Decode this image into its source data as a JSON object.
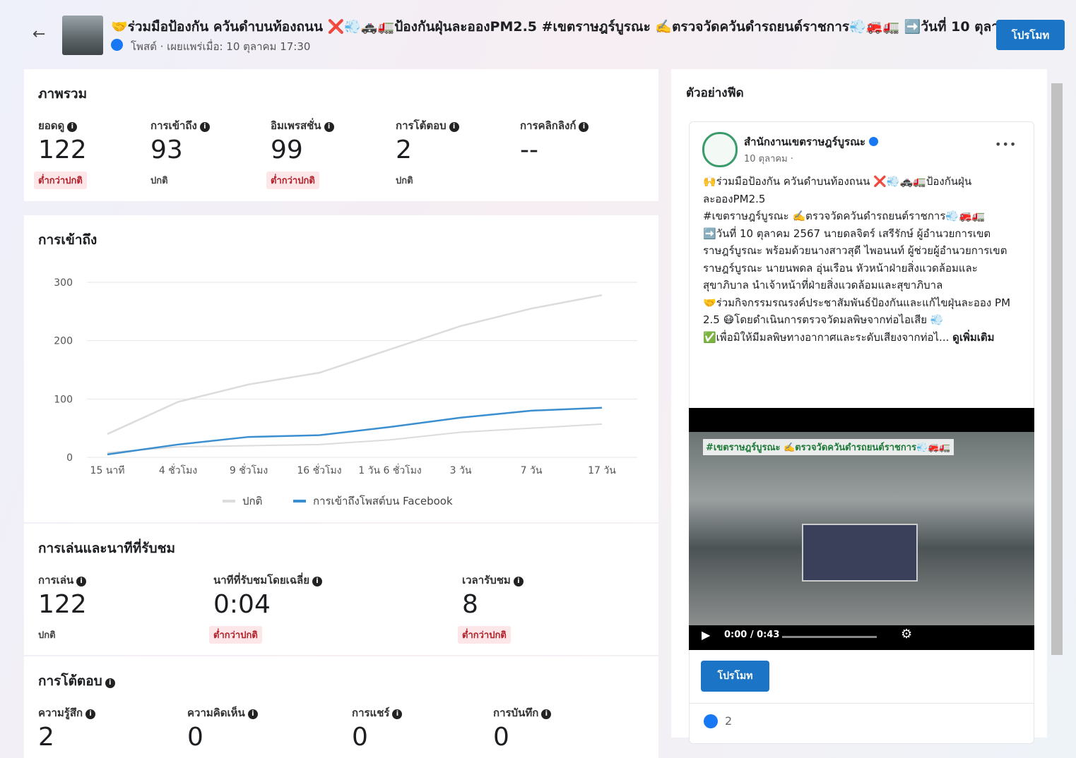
{
  "header": {
    "title": "🤝ร่วมมือป้องกัน ควันดำบนท้องถนน ❌💨🚓🚛ป้องกันฝุ่นละอองPM2.5 #เขตราษฎร์บูรณะ ✍️ตรวจวัดควันดำรถยนต์ราชการ💨🚒🚛 ➡️วันที่ 10 ตุลา...",
    "subtitle": "โพสต์ · เผยแพร่เมื่อ: 10 ตุลาคม 17:30",
    "button": "โปรโมท"
  },
  "overview": {
    "title": "ภาพรวม",
    "metrics": [
      {
        "label": "ยอดดู",
        "value": 122,
        "status": "ต่ำกว่าปกติ",
        "highlight": true
      },
      {
        "label": "การเข้าถึง",
        "value": 93,
        "status": "ปกติ",
        "highlight": false
      },
      {
        "label": "อิมเพรสชั่น",
        "value": 99,
        "status": "ต่ำกว่าปกติ",
        "highlight": true
      },
      {
        "label": "การโต้ตอบ",
        "value": 2,
        "status": "ปกติ",
        "highlight": false
      },
      {
        "label": "การคลิกลิงก์",
        "value": "--"
      }
    ]
  },
  "reach": {
    "title": "การเข้าถึง",
    "chart_data": {
      "type": "line",
      "categories": [
        "15 นาที",
        "4 ชั่วโมง",
        "9 ชั่วโมง",
        "16 ชั่วโมง",
        "1 วัน 6 ชั่วโมง",
        "3 วัน",
        "7 วัน",
        "17 วัน"
      ],
      "series": [
        {
          "name": "ปกติ",
          "color": "#dcdcdc",
          "values": [
            40,
            95,
            125,
            145,
            185,
            225,
            255,
            278
          ],
          "lower": [
            8,
            18,
            20,
            22,
            30,
            43,
            50,
            57
          ]
        },
        {
          "name": "การเข้าถึงโพสต์บน Facebook",
          "color": "#3b8fd0",
          "values": [
            5,
            22,
            35,
            38,
            52,
            68,
            80,
            85
          ]
        }
      ],
      "ylim": [
        0,
        300
      ],
      "yticks": [
        0,
        100,
        200,
        300
      ],
      "grid": true,
      "legend": "bottom"
    }
  },
  "playback": {
    "title": "การเล่นและนาทีที่รับชม",
    "metrics": [
      {
        "label": "การเล่น",
        "value": 122,
        "status": "ปกติ",
        "highlight": false
      },
      {
        "label": "นาทีที่รับชมโดยเฉลี่ย",
        "value": "0:04",
        "status": "ต่ำกว่าปกติ",
        "highlight": true
      },
      {
        "label": "เวลารับชม",
        "value": 8,
        "status": "ต่ำกว่าปกติ",
        "highlight": true
      }
    ]
  },
  "interactions": {
    "title": "การโต้ตอบ",
    "metrics": [
      {
        "label": "ความรู้สึก",
        "value": 2
      },
      {
        "label": "ความคิดเห็น",
        "value": 0
      },
      {
        "label": "การแชร์",
        "value": 0
      },
      {
        "label": "การบันทึก",
        "value": 0
      }
    ]
  },
  "feed": {
    "title": "ตัวอย่างฟีด",
    "page_name": "สำนักงานเขตราษฎร์บูรณะ",
    "date": "10 ตุลาคม ·",
    "paragraphs": [
      "🙌ร่วมมือป้องกัน ควันดำบนท้องถนน ❌💨🚓🚛ป้องกันฝุ่นละอองPM2.5",
      "#เขตราษฎร์บูรณะ ✍️ตรวจวัดควันดำรถยนต์ราชการ💨🚒🚛",
      "➡️วันที่ 10 ตุลาคม 2567 นายดลจิตร์ เสรีรักษ์ ผู้อำนวยการเขตราษฎร์บูรณะ พร้อมด้วยนางสาวสุดี ไพอนนท์ ผู้ช่วยผู้อำนวยการเขตราษฎร์บูรณะ นายนพดล อุ่นเรือน หัวหน้าฝ่ายสิ่งแวดล้อมและสุขาภิบาล นำเจ้าหน้าที่ฝ่ายสิ่งแวดล้อมและสุขาภิบาล",
      "🤝ร่วมกิจกรรมรณรงค์ประชาสัมพันธ์ป้องกันและแก้ไขฝุ่นละออง PM 2.5 😷โดยดำเนินการตรวจวัดมลพิษจากท่อไอเสีย 💨",
      "✅เพื่อมิให้มีมลพิษทางอากาศและระดับเสียงจากท่อไ..."
    ],
    "see_more": "ดูเพิ่มเติม",
    "video_caption": "#เขตราษฎร์บูรณะ ✍️ตรวจวัดควันดำรถยนต์ราชการ💨🚒🚛",
    "video_time": "0:00 / 0:43",
    "button": "โปรโมท",
    "likes": 2
  }
}
